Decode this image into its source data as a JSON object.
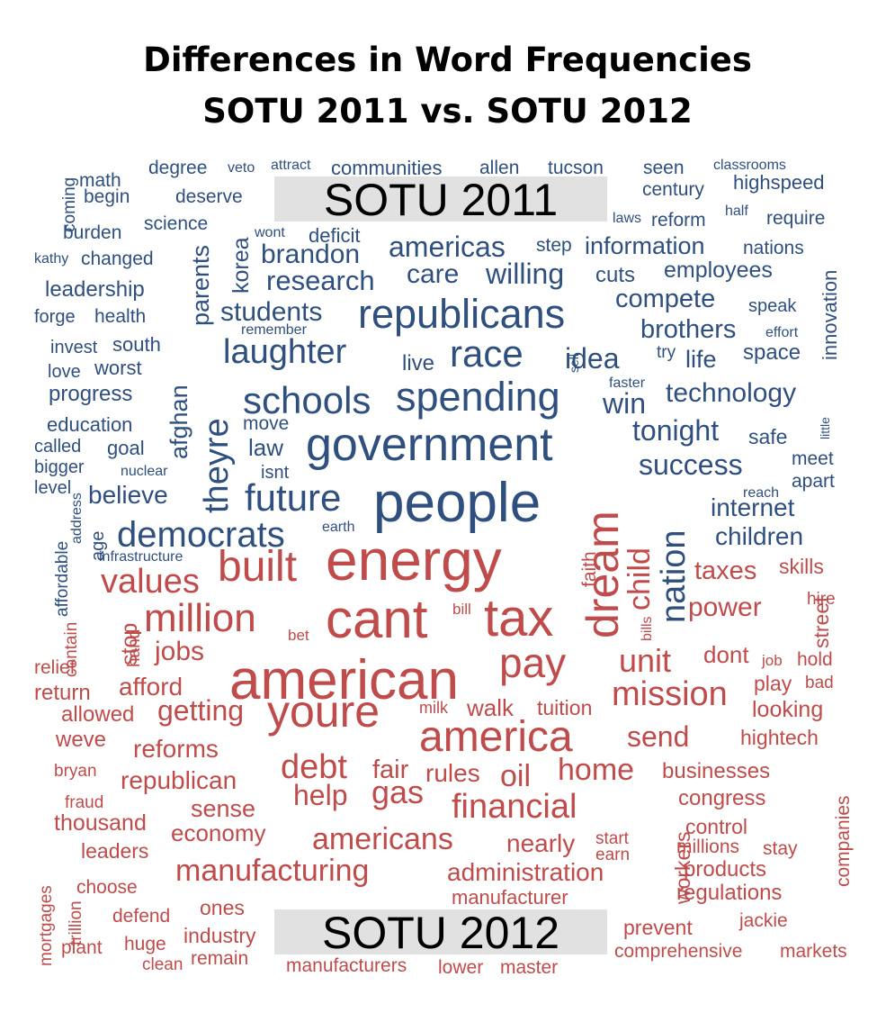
{
  "chart_data": {
    "type": "comparison_wordcloud",
    "title": [
      "Differences in Word Frequencies",
      "SOTU 2011 vs. SOTU 2012"
    ],
    "groups": [
      {
        "name": "SOTU 2011",
        "color": "#2f4f7f"
      },
      {
        "name": "SOTU 2012",
        "color": "#bf4b4b"
      }
    ],
    "words": [
      {
        "text": "people",
        "group": 0,
        "size": 62
      },
      {
        "text": "government",
        "group": 0,
        "size": 52
      },
      {
        "text": "republicans",
        "group": 0,
        "size": 45
      },
      {
        "text": "spending",
        "group": 0,
        "size": 45
      },
      {
        "text": "schools",
        "group": 0,
        "size": 42
      },
      {
        "text": "future",
        "group": 0,
        "size": 42
      },
      {
        "text": "race",
        "group": 0,
        "size": 42
      },
      {
        "text": "democrats",
        "group": 0,
        "size": 40
      },
      {
        "text": "laughter",
        "group": 0,
        "size": 38
      },
      {
        "text": "theyre",
        "group": 0,
        "size": 38
      },
      {
        "text": "nation",
        "group": 0,
        "size": 38
      },
      {
        "text": "americas",
        "group": 0,
        "size": 32
      },
      {
        "text": "willing",
        "group": 0,
        "size": 32
      },
      {
        "text": "idea",
        "group": 0,
        "size": 32
      },
      {
        "text": "win",
        "group": 0,
        "size": 32
      },
      {
        "text": "tonight",
        "group": 0,
        "size": 32
      },
      {
        "text": "success",
        "group": 0,
        "size": 32
      },
      {
        "text": "research",
        "group": 0,
        "size": 31
      },
      {
        "text": "care",
        "group": 0,
        "size": 30
      },
      {
        "text": "students",
        "group": 0,
        "size": 30
      },
      {
        "text": "brandon",
        "group": 0,
        "size": 30
      },
      {
        "text": "technology",
        "group": 0,
        "size": 30
      },
      {
        "text": "brothers",
        "group": 0,
        "size": 29
      },
      {
        "text": "compete",
        "group": 0,
        "size": 29
      },
      {
        "text": "believe",
        "group": 0,
        "size": 28
      },
      {
        "text": "internet",
        "group": 0,
        "size": 28
      },
      {
        "text": "children",
        "group": 0,
        "size": 28
      },
      {
        "text": "information",
        "group": 0,
        "size": 27
      },
      {
        "text": "afghan",
        "group": 0,
        "size": 27
      },
      {
        "text": "life",
        "group": 0,
        "size": 27
      },
      {
        "text": "parents",
        "group": 0,
        "size": 27
      },
      {
        "text": "law",
        "group": 0,
        "size": 26
      },
      {
        "text": "korea",
        "group": 0,
        "size": 25
      },
      {
        "text": "employees",
        "group": 0,
        "size": 25
      },
      {
        "text": "cuts",
        "group": 0,
        "size": 24
      },
      {
        "text": "space",
        "group": 0,
        "size": 24
      },
      {
        "text": "live",
        "group": 0,
        "size": 24
      },
      {
        "text": "leadership",
        "group": 0,
        "size": 24
      },
      {
        "text": "progress",
        "group": 0,
        "size": 24
      },
      {
        "text": "safe",
        "group": 0,
        "size": 23
      },
      {
        "text": "innovation",
        "group": 0,
        "size": 22
      },
      {
        "text": "deficit",
        "group": 0,
        "size": 22
      },
      {
        "text": "communities",
        "group": 0,
        "size": 22
      },
      {
        "text": "south",
        "group": 0,
        "size": 22
      },
      {
        "text": "worst",
        "group": 0,
        "size": 22
      },
      {
        "text": "goal",
        "group": 0,
        "size": 22
      },
      {
        "text": "education",
        "group": 0,
        "size": 22
      },
      {
        "text": "highspeed",
        "group": 0,
        "size": 22
      },
      {
        "text": "nations",
        "group": 0,
        "size": 21
      },
      {
        "text": "allen",
        "group": 0,
        "size": 21
      },
      {
        "text": "tucson",
        "group": 0,
        "size": 21
      },
      {
        "text": "degree",
        "group": 0,
        "size": 21
      },
      {
        "text": "math",
        "group": 0,
        "size": 21
      },
      {
        "text": "require",
        "group": 0,
        "size": 21
      },
      {
        "text": "reform",
        "group": 0,
        "size": 21
      },
      {
        "text": "seen",
        "group": 0,
        "size": 21
      },
      {
        "text": "century",
        "group": 0,
        "size": 21
      },
      {
        "text": "changed",
        "group": 0,
        "size": 21
      },
      {
        "text": "health",
        "group": 0,
        "size": 21
      },
      {
        "text": "meet",
        "group": 0,
        "size": 21
      },
      {
        "text": "apart",
        "group": 0,
        "size": 21
      },
      {
        "text": "deserve",
        "group": 0,
        "size": 21
      },
      {
        "text": "science",
        "group": 0,
        "size": 21
      },
      {
        "text": "burden",
        "group": 0,
        "size": 21
      },
      {
        "text": "begin",
        "group": 0,
        "size": 21
      },
      {
        "text": "move",
        "group": 0,
        "size": 21
      },
      {
        "text": "step",
        "group": 0,
        "size": 21
      },
      {
        "text": "speak",
        "group": 0,
        "size": 20
      },
      {
        "text": "forge",
        "group": 0,
        "size": 20
      },
      {
        "text": "invest",
        "group": 0,
        "size": 20
      },
      {
        "text": "love",
        "group": 0,
        "size": 20
      },
      {
        "text": "called",
        "group": 0,
        "size": 20
      },
      {
        "text": "bigger",
        "group": 0,
        "size": 20
      },
      {
        "text": "level",
        "group": 0,
        "size": 20
      },
      {
        "text": "isnt",
        "group": 0,
        "size": 20
      },
      {
        "text": "age",
        "group": 0,
        "size": 20
      },
      {
        "text": "coming",
        "group": 0,
        "size": 19
      },
      {
        "text": "try",
        "group": 0,
        "size": 19
      },
      {
        "text": "affordable",
        "group": 0,
        "size": 19
      },
      {
        "text": "wont",
        "group": 0,
        "size": 16
      },
      {
        "text": "attract",
        "group": 0,
        "size": 16
      },
      {
        "text": "veto",
        "group": 0,
        "size": 16
      },
      {
        "text": "classrooms",
        "group": 0,
        "size": 16
      },
      {
        "text": "laws",
        "group": 0,
        "size": 16
      },
      {
        "text": "half",
        "group": 0,
        "size": 16
      },
      {
        "text": "kathy",
        "group": 0,
        "size": 16
      },
      {
        "text": "remember",
        "group": 0,
        "size": 16
      },
      {
        "text": "effort",
        "group": 0,
        "size": 16
      },
      {
        "text": "faster",
        "group": 0,
        "size": 16
      },
      {
        "text": "nuclear",
        "group": 0,
        "size": 16
      },
      {
        "text": "reach",
        "group": 0,
        "size": 16
      },
      {
        "text": "earth",
        "group": 0,
        "size": 16
      },
      {
        "text": "infrastructure",
        "group": 0,
        "size": 16
      },
      {
        "text": "address",
        "group": 0,
        "size": 16
      },
      {
        "text": "sell",
        "group": 0,
        "size": 14
      },
      {
        "text": "little",
        "group": 0,
        "size": 14
      },
      {
        "text": "energy",
        "group": 1,
        "size": 64
      },
      {
        "text": "american",
        "group": 1,
        "size": 62
      },
      {
        "text": "cant",
        "group": 1,
        "size": 60
      },
      {
        "text": "tax",
        "group": 1,
        "size": 58
      },
      {
        "text": "youre",
        "group": 1,
        "size": 50
      },
      {
        "text": "dream",
        "group": 1,
        "size": 50
      },
      {
        "text": "america",
        "group": 1,
        "size": 48
      },
      {
        "text": "built",
        "group": 1,
        "size": 48
      },
      {
        "text": "pay",
        "group": 1,
        "size": 46
      },
      {
        "text": "million",
        "group": 1,
        "size": 44
      },
      {
        "text": "values",
        "group": 1,
        "size": 38
      },
      {
        "text": "debt",
        "group": 1,
        "size": 38
      },
      {
        "text": "mission",
        "group": 1,
        "size": 38
      },
      {
        "text": "financial",
        "group": 1,
        "size": 38
      },
      {
        "text": "gas",
        "group": 1,
        "size": 36
      },
      {
        "text": "unit",
        "group": 1,
        "size": 36
      },
      {
        "text": "child",
        "group": 1,
        "size": 34
      },
      {
        "text": "oil",
        "group": 1,
        "size": 34
      },
      {
        "text": "home",
        "group": 1,
        "size": 34
      },
      {
        "text": "manufacturing",
        "group": 1,
        "size": 34
      },
      {
        "text": "americans",
        "group": 1,
        "size": 34
      },
      {
        "text": "getting",
        "group": 1,
        "size": 32
      },
      {
        "text": "help",
        "group": 1,
        "size": 32
      },
      {
        "text": "send",
        "group": 1,
        "size": 32
      },
      {
        "text": "jobs",
        "group": 1,
        "size": 30
      },
      {
        "text": "power",
        "group": 1,
        "size": 30
      },
      {
        "text": "fair",
        "group": 1,
        "size": 29
      },
      {
        "text": "taxes",
        "group": 1,
        "size": 29
      },
      {
        "text": "rules",
        "group": 1,
        "size": 28
      },
      {
        "text": "reforms",
        "group": 1,
        "size": 28
      },
      {
        "text": "republican",
        "group": 1,
        "size": 28
      },
      {
        "text": "afford",
        "group": 1,
        "size": 28
      },
      {
        "text": "nearly",
        "group": 1,
        "size": 28
      },
      {
        "text": "administration",
        "group": 1,
        "size": 28
      },
      {
        "text": "sense",
        "group": 1,
        "size": 27
      },
      {
        "text": "economy",
        "group": 1,
        "size": 26
      },
      {
        "text": "dont",
        "group": 1,
        "size": 26
      },
      {
        "text": "walk",
        "group": 1,
        "size": 26
      },
      {
        "text": "thousand",
        "group": 1,
        "size": 25
      },
      {
        "text": "looking",
        "group": 1,
        "size": 25
      },
      {
        "text": "stop",
        "group": 1,
        "size": 25
      },
      {
        "text": "businesses",
        "group": 1,
        "size": 24
      },
      {
        "text": "congress",
        "group": 1,
        "size": 24
      },
      {
        "text": "return",
        "group": 1,
        "size": 24
      },
      {
        "text": "allowed",
        "group": 1,
        "size": 24
      },
      {
        "text": "weve",
        "group": 1,
        "size": 24
      },
      {
        "text": "products",
        "group": 1,
        "size": 24
      },
      {
        "text": "regulations",
        "group": 1,
        "size": 24
      },
      {
        "text": "skills",
        "group": 1,
        "size": 23
      },
      {
        "text": "street",
        "group": 1,
        "size": 23
      },
      {
        "text": "leaders",
        "group": 1,
        "size": 23
      },
      {
        "text": "control",
        "group": 1,
        "size": 23
      },
      {
        "text": "hightech",
        "group": 1,
        "size": 23
      },
      {
        "text": "play",
        "group": 1,
        "size": 23
      },
      {
        "text": "tuition",
        "group": 1,
        "size": 23
      },
      {
        "text": "ones",
        "group": 1,
        "size": 23
      },
      {
        "text": "industry",
        "group": 1,
        "size": 23
      },
      {
        "text": "workers",
        "group": 1,
        "size": 23
      },
      {
        "text": "prevent",
        "group": 1,
        "size": 23
      },
      {
        "text": "manufacturer",
        "group": 1,
        "size": 22
      },
      {
        "text": "hold",
        "group": 1,
        "size": 21
      },
      {
        "text": "faith",
        "group": 1,
        "size": 21
      },
      {
        "text": "companies",
        "group": 1,
        "size": 21
      },
      {
        "text": "millions",
        "group": 1,
        "size": 21
      },
      {
        "text": "stay",
        "group": 1,
        "size": 21
      },
      {
        "text": "choose",
        "group": 1,
        "size": 21
      },
      {
        "text": "defend",
        "group": 1,
        "size": 21
      },
      {
        "text": "huge",
        "group": 1,
        "size": 21
      },
      {
        "text": "plant",
        "group": 1,
        "size": 21
      },
      {
        "text": "jackie",
        "group": 1,
        "size": 21
      },
      {
        "text": "comprehensive",
        "group": 1,
        "size": 21
      },
      {
        "text": "markets",
        "group": 1,
        "size": 21
      },
      {
        "text": "manufacturers",
        "group": 1,
        "size": 21
      },
      {
        "text": "lower",
        "group": 1,
        "size": 21
      },
      {
        "text": "master",
        "group": 1,
        "size": 21
      },
      {
        "text": "remain",
        "group": 1,
        "size": 21
      },
      {
        "text": "relief",
        "group": 1,
        "size": 21
      },
      {
        "text": "mortgages",
        "group": 1,
        "size": 19
      },
      {
        "text": "trillion",
        "group": 1,
        "size": 19
      },
      {
        "text": "hire",
        "group": 1,
        "size": 19
      },
      {
        "text": "bad",
        "group": 1,
        "size": 19
      },
      {
        "text": "bryan",
        "group": 1,
        "size": 19
      },
      {
        "text": "fraud",
        "group": 1,
        "size": 19
      },
      {
        "text": "contain",
        "group": 1,
        "size": 19
      },
      {
        "text": "hand",
        "group": 1,
        "size": 19
      },
      {
        "text": "clean",
        "group": 1,
        "size": 19
      },
      {
        "text": "start",
        "group": 1,
        "size": 19
      },
      {
        "text": "earn",
        "group": 1,
        "size": 19
      },
      {
        "text": "milk",
        "group": 1,
        "size": 18
      },
      {
        "text": "bill",
        "group": 1,
        "size": 17
      },
      {
        "text": "bet",
        "group": 1,
        "size": 17
      },
      {
        "text": "job",
        "group": 1,
        "size": 17
      },
      {
        "text": "bills",
        "group": 1,
        "size": 16
      }
    ]
  }
}
